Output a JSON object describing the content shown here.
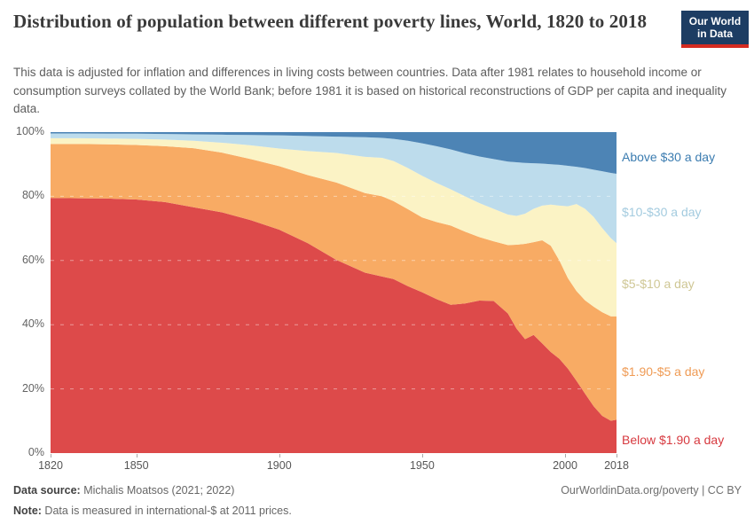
{
  "header": {
    "title": "Distribution of population between different poverty lines, World, 1820 to 2018",
    "subtitle": "This data is adjusted for inflation and differences in living costs between countries. Data after 1981 relates to household income or consumption surveys collated by the World Bank; before 1981 it is based on historical reconstructions of GDP per capita and inequality data.",
    "logo": {
      "line1": "Our World",
      "line2": "in Data",
      "bg": "#1d3d63",
      "accent": "#d42b21"
    }
  },
  "chart_data": {
    "type": "area",
    "stacked": true,
    "unit": "% of population",
    "xlim": [
      1820,
      2018
    ],
    "ylim": [
      0,
      100
    ],
    "grid": "dashed horizontal, white over areas",
    "legend_position": "right edge, colored text labels",
    "x": [
      1820,
      1830,
      1840,
      1850,
      1860,
      1870,
      1880,
      1890,
      1900,
      1910,
      1920,
      1930,
      1936,
      1940,
      1945,
      1950,
      1955,
      1960,
      1965,
      1970,
      1975,
      1980,
      1983,
      1986,
      1989,
      1992,
      1995,
      1998,
      2001,
      2004,
      2007,
      2010,
      2013,
      2016,
      2018
    ],
    "series": [
      {
        "name": "Below $1.90 a day",
        "color": "#dd4a4a",
        "label_color": "#d7393f",
        "values": [
          79.5,
          79.4,
          79.3,
          79.0,
          78.2,
          76.6,
          75.0,
          72.6,
          69.6,
          65.4,
          60.2,
          56.2,
          55.0,
          54.2,
          52.0,
          50.1,
          48.0,
          46.2,
          46.6,
          47.5,
          47.4,
          43.5,
          38.8,
          35.5,
          36.8,
          34.2,
          31.5,
          29.4,
          26.3,
          22.5,
          18.5,
          14.6,
          11.6,
          10.1,
          10.4
        ]
      },
      {
        "name": "$1.90-$5 a day",
        "color": "#f8ab64",
        "label_color": "#ef9b55",
        "values": [
          16.8,
          16.9,
          16.9,
          17.0,
          17.4,
          18.4,
          18.6,
          19.0,
          19.8,
          21.2,
          24.1,
          24.8,
          25.0,
          24.3,
          24.0,
          23.3,
          24.0,
          24.7,
          22.4,
          19.8,
          18.6,
          21.3,
          26.1,
          29.7,
          28.9,
          32.1,
          33.1,
          30.6,
          28.2,
          28.0,
          29.1,
          31.0,
          32.3,
          32.5,
          32.2
        ]
      },
      {
        "name": "$5-$10 a day",
        "color": "#fbf3c5",
        "label_color": "#cfc795",
        "values": [
          1.8,
          1.8,
          1.8,
          1.9,
          2.1,
          2.3,
          3.1,
          4.3,
          5.5,
          7.5,
          9.2,
          11.3,
          12.0,
          12.5,
          12.8,
          13.0,
          12.2,
          11.3,
          11.0,
          10.6,
          10.1,
          9.5,
          9.0,
          9.4,
          10.4,
          10.8,
          12.8,
          17.1,
          22.4,
          27.1,
          28.5,
          28.0,
          26.2,
          24.4,
          22.8
        ]
      },
      {
        "name": "$10-$30 a day",
        "color": "#bddcec",
        "label_color": "#a3cbdf",
        "values": [
          1.5,
          1.5,
          1.5,
          1.6,
          1.7,
          2.0,
          2.5,
          3.2,
          4.1,
          4.7,
          5.1,
          6.1,
          6.2,
          6.9,
          8.5,
          10.1,
          11.4,
          12.4,
          13.4,
          14.5,
          15.5,
          16.5,
          16.7,
          15.8,
          14.2,
          13.1,
          12.6,
          12.7,
          12.6,
          11.6,
          12.7,
          14.7,
          17.7,
          20.3,
          21.6
        ]
      },
      {
        "name": "Above $30 a day",
        "color": "#4d84b5",
        "label_color": "#3b7cb0",
        "values": [
          0.4,
          0.4,
          0.5,
          0.5,
          0.6,
          0.7,
          0.8,
          0.9,
          1.0,
          1.2,
          1.4,
          1.6,
          1.8,
          2.1,
          2.7,
          3.5,
          4.4,
          5.4,
          6.6,
          7.6,
          8.4,
          9.2,
          9.4,
          9.6,
          9.7,
          9.8,
          10.0,
          10.2,
          10.5,
          10.8,
          11.2,
          11.7,
          12.2,
          12.7,
          13.0
        ]
      }
    ],
    "x_ticks": [
      1820,
      1850,
      1900,
      1950,
      2000,
      2018
    ],
    "y_ticks": [
      {
        "value": 0,
        "label": "0%"
      },
      {
        "value": 20,
        "label": "20%"
      },
      {
        "value": 40,
        "label": "40%"
      },
      {
        "value": 60,
        "label": "60%"
      },
      {
        "value": 80,
        "label": "80%"
      },
      {
        "value": 100,
        "label": "100%"
      }
    ],
    "title": "Distribution of population between different poverty lines, World, 1820 to 2018"
  },
  "footer": {
    "source_label": "Data source:",
    "source_text": " Michalis Moatsos (2021; 2022)",
    "note_label": "Note:",
    "note_text": " Data is measured in international-$ at 2011 prices.",
    "credit": "OurWorldinData.org/poverty | CC BY"
  }
}
